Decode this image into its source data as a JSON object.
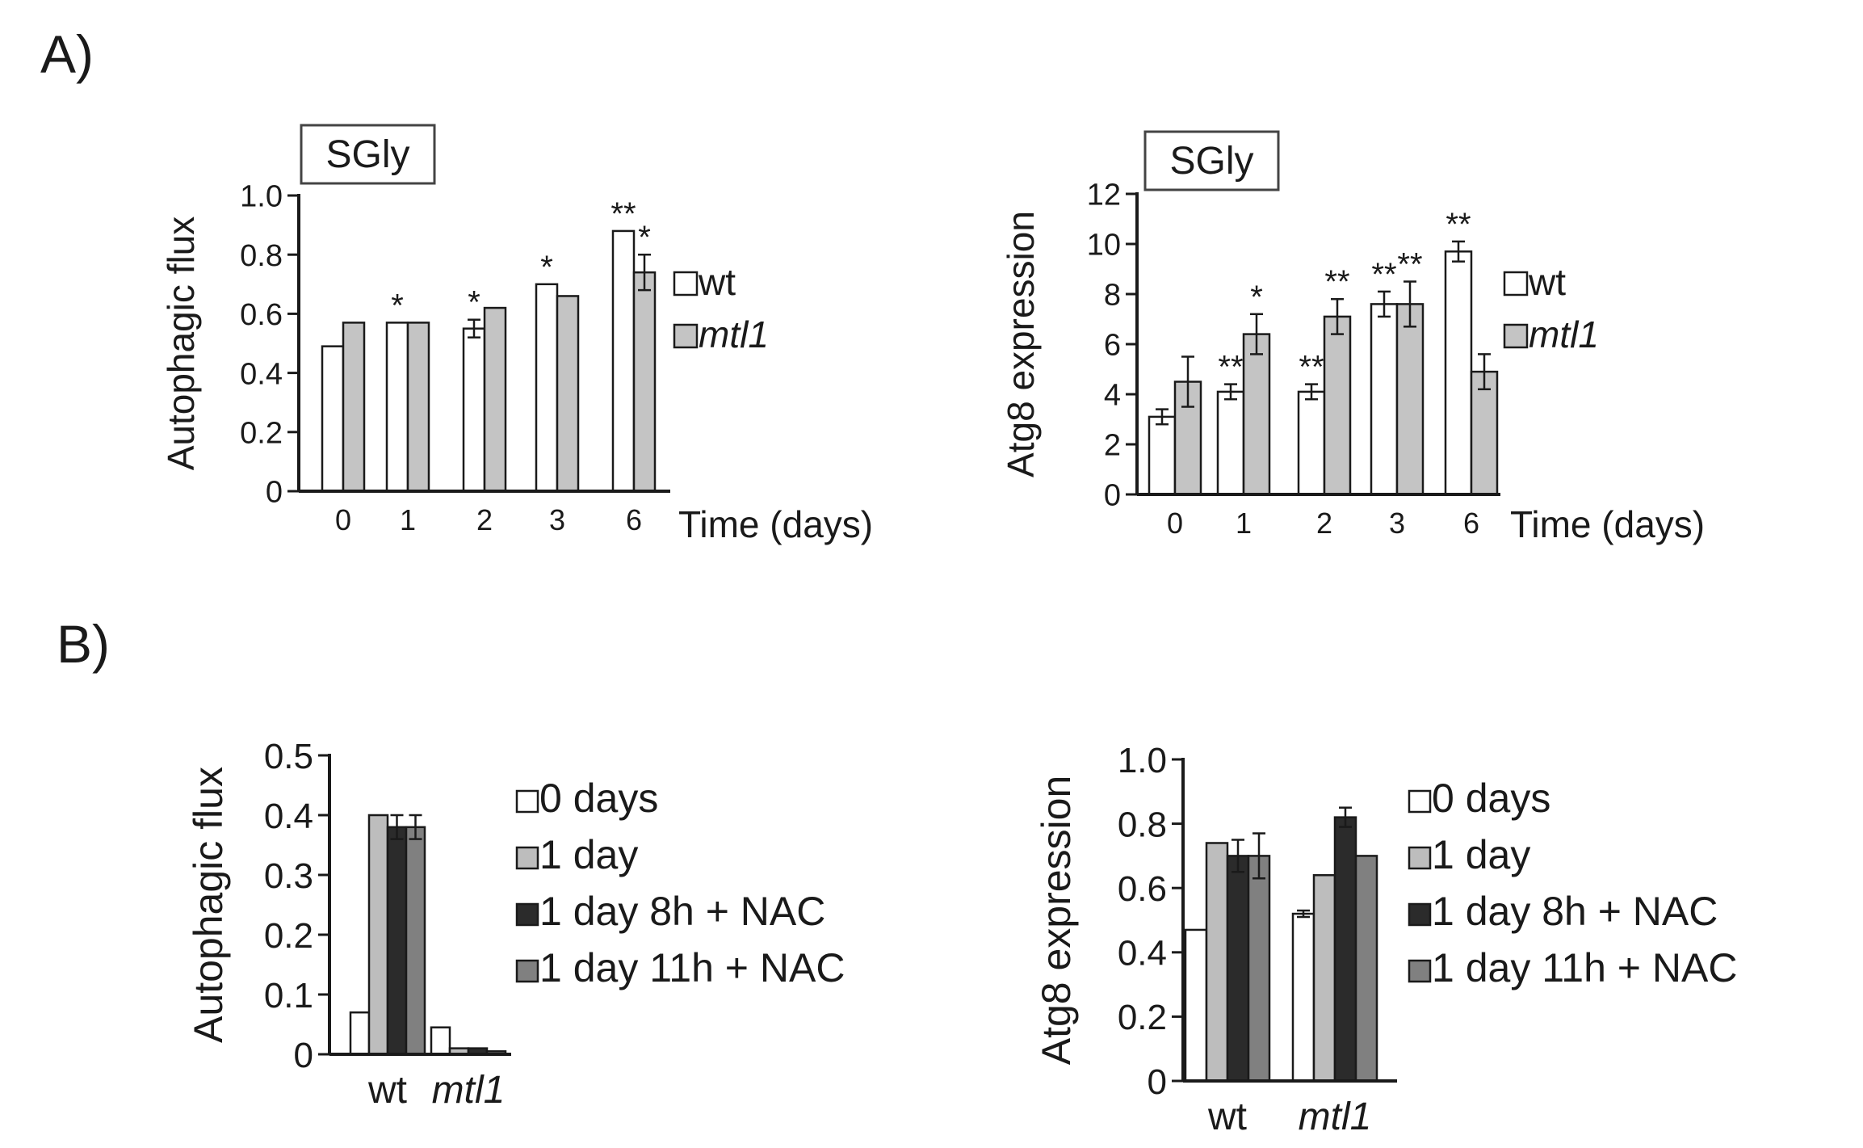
{
  "figure": {
    "panel_a_label": "A)",
    "panel_b_label": "B)"
  },
  "colors": {
    "wt": "#ffffff",
    "mtl1": "#c4c4c4",
    "day0": "#ffffff",
    "day1": "#bdbdbd",
    "day1_8h_nac": "#2b2b2b",
    "day1_11h_nac": "#808080",
    "axis": "#1a1a1a"
  },
  "chart_data": [
    {
      "id": "a-left",
      "type": "bar",
      "panel": "A",
      "title": "SGly",
      "xlabel": "Time (days)",
      "ylabel": "Autophagic flux",
      "ylim": [
        0,
        1.0
      ],
      "yticks": [
        "0",
        "0.2",
        "0.4",
        "0.6",
        "0.8",
        "1.0"
      ],
      "categories": [
        "0",
        "1",
        "2",
        "3",
        "6"
      ],
      "series": [
        {
          "name": "wt",
          "values": [
            0.49,
            0.57,
            0.55,
            0.7,
            0.88
          ],
          "errors": [
            0,
            0,
            0.03,
            0,
            0
          ]
        },
        {
          "name": "mtl1",
          "values": [
            0.57,
            0.57,
            0.62,
            0.66,
            0.74
          ],
          "errors": [
            0,
            0,
            0,
            0,
            0.06
          ]
        }
      ],
      "annotations": [
        {
          "category": "1",
          "series": "wt",
          "text": "*"
        },
        {
          "category": "2",
          "series": "wt",
          "text": "*"
        },
        {
          "category": "3",
          "series": "wt",
          "text": "*"
        },
        {
          "category": "6",
          "series": "wt",
          "text": "**"
        },
        {
          "category": "6",
          "series": "mtl1",
          "text": "*"
        }
      ],
      "legend": [
        "wt",
        "mtl1"
      ],
      "legend_position": "right"
    },
    {
      "id": "a-right",
      "type": "bar",
      "panel": "A",
      "title": "SGly",
      "xlabel": "Time (days)",
      "ylabel": "Atg8 expression",
      "ylim": [
        0,
        12
      ],
      "yticks": [
        "0",
        "2",
        "4",
        "6",
        "8",
        "10",
        "12"
      ],
      "categories": [
        "0",
        "1",
        "2",
        "3",
        "6"
      ],
      "series": [
        {
          "name": "wt",
          "values": [
            3.1,
            4.1,
            4.1,
            7.6,
            9.7
          ],
          "errors": [
            0.3,
            0.3,
            0.3,
            0.5,
            0.4
          ]
        },
        {
          "name": "mtl1",
          "values": [
            4.5,
            6.4,
            7.1,
            7.6,
            4.9
          ],
          "errors": [
            1.0,
            0.8,
            0.7,
            0.9,
            0.7
          ]
        }
      ],
      "annotations": [
        {
          "category": "1",
          "series": "wt",
          "text": "**"
        },
        {
          "category": "1",
          "series": "mtl1",
          "text": "*"
        },
        {
          "category": "2",
          "series": "wt",
          "text": "**"
        },
        {
          "category": "2",
          "series": "mtl1",
          "text": "**"
        },
        {
          "category": "3",
          "series": "wt",
          "text": "**"
        },
        {
          "category": "3",
          "series": "mtl1",
          "text": "**"
        },
        {
          "category": "6",
          "series": "wt",
          "text": "**"
        }
      ],
      "legend": [
        "wt",
        "mtl1"
      ],
      "legend_position": "right"
    },
    {
      "id": "b-left",
      "type": "bar",
      "panel": "B",
      "xlabel": "",
      "ylabel": "Autophagic flux",
      "ylim": [
        0,
        0.5
      ],
      "yticks": [
        "0",
        "0.1",
        "0.2",
        "0.3",
        "0.4",
        "0.5"
      ],
      "categories": [
        "wt",
        "mtl1"
      ],
      "series": [
        {
          "name": "0 days",
          "values": [
            0.07,
            0.045
          ],
          "errors": [
            0,
            0
          ]
        },
        {
          "name": "1 day",
          "values": [
            0.4,
            0.01
          ],
          "errors": [
            0,
            0
          ]
        },
        {
          "name": "1 day 8h + NAC",
          "values": [
            0.38,
            0.01
          ],
          "errors": [
            0.02,
            0
          ]
        },
        {
          "name": "1 day 11h + NAC",
          "values": [
            0.38,
            0.005
          ],
          "errors": [
            0.02,
            0
          ]
        }
      ],
      "legend": [
        "0 days",
        "1 day",
        "1 day 8h + NAC",
        "1 day 11h + NAC"
      ],
      "legend_position": "right"
    },
    {
      "id": "b-right",
      "type": "bar",
      "panel": "B",
      "xlabel": "",
      "ylabel": "Atg8 expression",
      "ylim": [
        0,
        1.0
      ],
      "yticks": [
        "0",
        "0.2",
        "0.4",
        "0.6",
        "0.8",
        "1.0"
      ],
      "categories": [
        "wt",
        "mtl1"
      ],
      "series": [
        {
          "name": "0 days",
          "values": [
            0.47,
            0.52
          ],
          "errors": [
            0,
            0.01
          ]
        },
        {
          "name": "1 day",
          "values": [
            0.74,
            0.64
          ],
          "errors": [
            0,
            0
          ]
        },
        {
          "name": "1 day 8h + NAC",
          "values": [
            0.7,
            0.82
          ],
          "errors": [
            0.05,
            0.03
          ]
        },
        {
          "name": "1 day 11h + NAC",
          "values": [
            0.7,
            0.7
          ],
          "errors": [
            0.07,
            0
          ]
        }
      ],
      "legend": [
        "0 days",
        "1 day",
        "1 day 8h + NAC",
        "1 day 11h + NAC"
      ],
      "legend_position": "right"
    }
  ]
}
